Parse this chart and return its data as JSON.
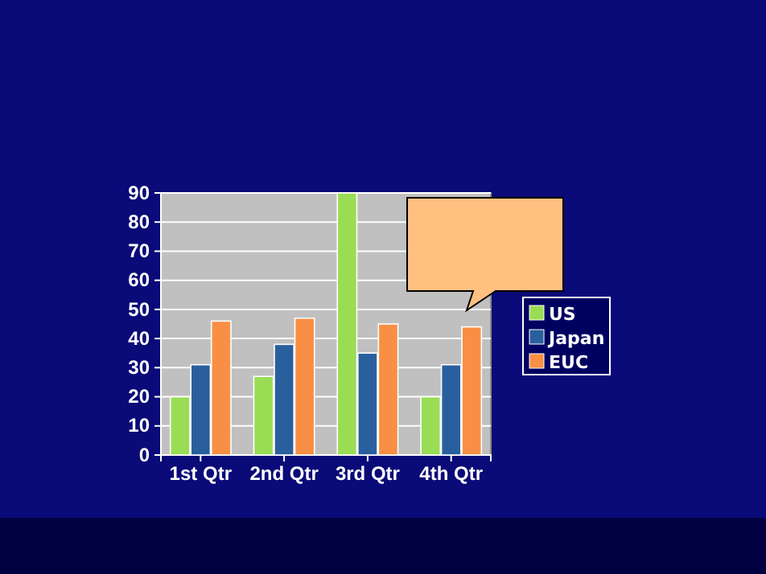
{
  "chart_data": {
    "type": "bar",
    "categories": [
      "1st Qtr",
      "2nd Qtr",
      "3rd Qtr",
      "4th Qtr"
    ],
    "series": [
      {
        "name": "US",
        "color": "#99dd55",
        "values": [
          20,
          27,
          90,
          20
        ]
      },
      {
        "name": "Japan",
        "color": "#2a5f9e",
        "values": [
          31,
          38,
          35,
          31
        ]
      },
      {
        "name": "EUC",
        "color": "#f98f45",
        "values": [
          46,
          47,
          45,
          44
        ]
      }
    ],
    "ylim": [
      0,
      90
    ],
    "yticks": [
      0,
      10,
      20,
      30,
      40,
      50,
      60,
      70,
      80,
      90
    ],
    "grid": "y",
    "legend": "right"
  }
}
